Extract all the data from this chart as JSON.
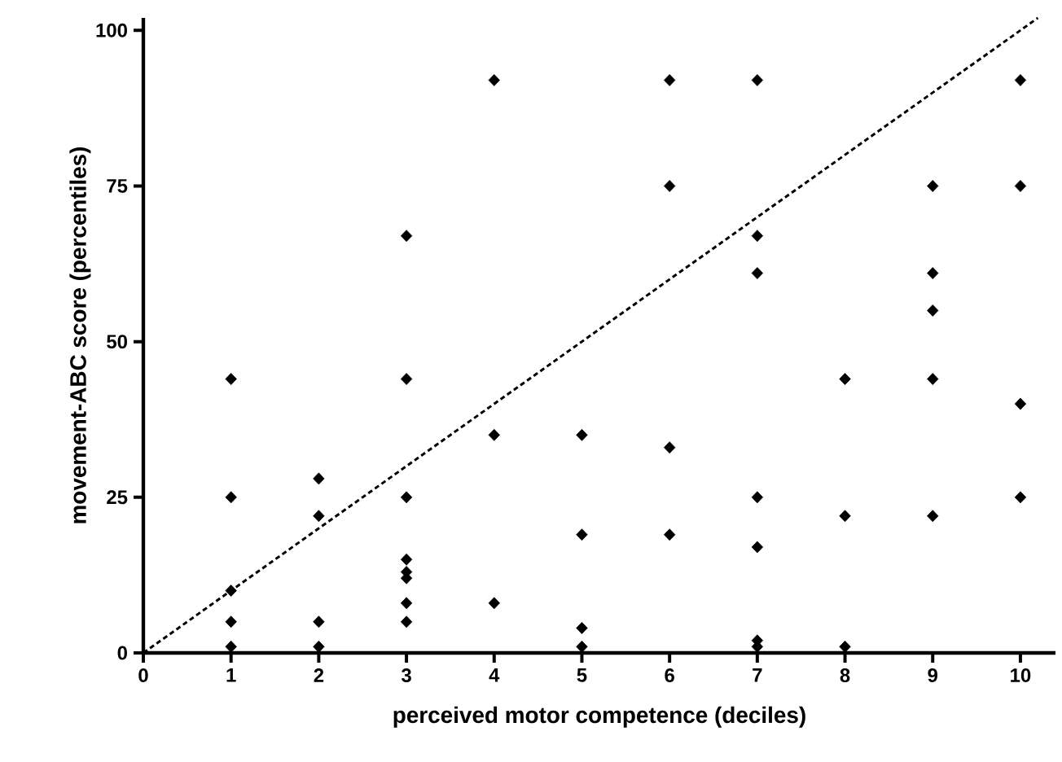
{
  "chart_data": {
    "type": "scatter",
    "xlabel": "perceived motor competence (deciles)",
    "ylabel": "movement-ABC score (percentiles)",
    "xlim": [
      0,
      10.4
    ],
    "ylim": [
      0,
      102
    ],
    "xticks": [
      0,
      1,
      2,
      3,
      4,
      5,
      6,
      7,
      8,
      9,
      10
    ],
    "yticks": [
      0,
      25,
      50,
      75,
      100
    ],
    "marker": "diamond",
    "series": [
      {
        "color": "#000000",
        "x": [
          1,
          1,
          1,
          1,
          1,
          2,
          2,
          2,
          2,
          3,
          3,
          3,
          3,
          3,
          3,
          3,
          3,
          4,
          4,
          4,
          5,
          5,
          5,
          5,
          6,
          6,
          6,
          6,
          7,
          7,
          7,
          7,
          7,
          7,
          7,
          8,
          8,
          8,
          9,
          9,
          9,
          9,
          9,
          10,
          10,
          10,
          10
        ],
        "values": [
          44,
          25,
          10,
          5,
          1,
          28,
          22,
          5,
          1,
          67,
          44,
          25,
          15,
          13,
          12,
          8,
          5,
          92,
          35,
          8,
          35,
          19,
          4,
          1,
          92,
          75,
          33,
          19,
          92,
          67,
          61,
          25,
          17,
          2,
          1,
          44,
          22,
          1,
          75,
          61,
          55,
          44,
          22,
          92,
          75,
          40,
          25
        ]
      },
      {
        "type": "line",
        "color": "#000000",
        "marker": "none",
        "line_style": "dashed",
        "x": [
          0,
          10.2
        ],
        "values": [
          0,
          102
        ]
      }
    ]
  }
}
